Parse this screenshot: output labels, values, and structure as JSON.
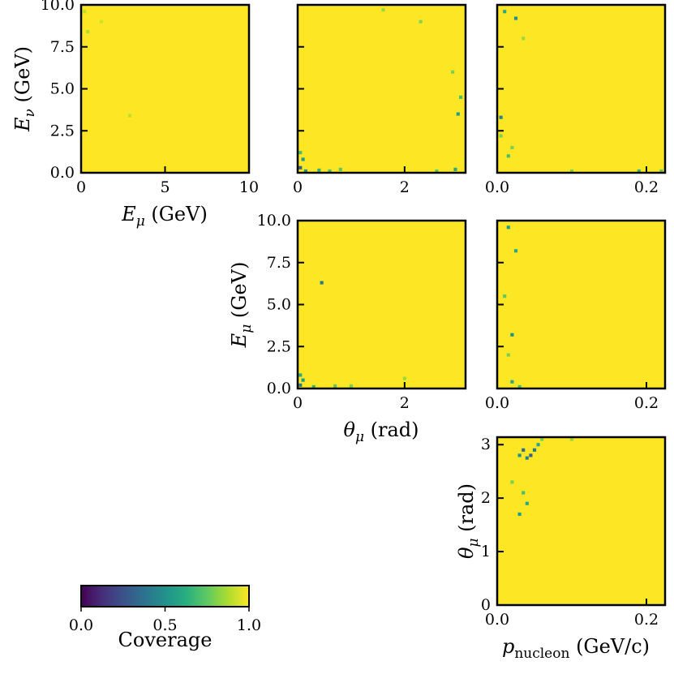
{
  "chart_data": [
    {
      "type": "heatmap",
      "id": "p00",
      "x_var": "E_mu",
      "y_var": "E_nu",
      "xlim": [
        0,
        10
      ],
      "ylim": [
        0,
        10
      ],
      "xticks": [
        {
          "v": 0,
          "label": "0"
        },
        {
          "v": 5,
          "label": "5"
        },
        {
          "v": 10,
          "label": "10"
        }
      ],
      "yticks": [
        {
          "v": 0,
          "label": "0.0"
        },
        {
          "v": 2.5,
          "label": "2.5"
        },
        {
          "v": 5,
          "label": "5.0"
        },
        {
          "v": 7.5,
          "label": "7.5"
        },
        {
          "v": 10,
          "label": "10.0"
        }
      ],
      "show_ytick_labels": true,
      "xlabel": {
        "main": "E",
        "sub": "μ",
        "unit": " (GeV)"
      },
      "ylabel": {
        "main": "E",
        "sub": "ν",
        "unit": " (GeV)"
      },
      "background_coverage": 1.0,
      "cells": [
        [
          0.2,
          9.6,
          0.9
        ],
        [
          0.4,
          8.4,
          0.88
        ],
        [
          2.9,
          3.4,
          0.9
        ],
        [
          1.2,
          9.0,
          0.93
        ]
      ]
    },
    {
      "type": "heatmap",
      "id": "p01",
      "x_var": "theta_mu",
      "y_var": "E_nu",
      "xlim": [
        0,
        3.14
      ],
      "ylim": [
        0,
        10
      ],
      "xticks": [
        {
          "v": 0,
          "label": "0"
        },
        {
          "v": 2,
          "label": "2"
        }
      ],
      "yticks": [
        {
          "v": 0,
          "label": ""
        },
        {
          "v": 2.5,
          "label": ""
        },
        {
          "v": 5,
          "label": ""
        },
        {
          "v": 7.5,
          "label": ""
        },
        {
          "v": 10,
          "label": ""
        }
      ],
      "show_ytick_labels": false,
      "background_coverage": 1.0,
      "cells": [
        [
          0.05,
          0.3,
          0.3
        ],
        [
          0.1,
          0.8,
          0.55
        ],
        [
          0.05,
          1.2,
          0.7
        ],
        [
          0.15,
          0.1,
          0.5
        ],
        [
          0.4,
          0.15,
          0.65
        ],
        [
          0.6,
          0.1,
          0.7
        ],
        [
          0.8,
          0.2,
          0.75
        ],
        [
          3.0,
          3.5,
          0.55
        ],
        [
          3.05,
          4.5,
          0.7
        ],
        [
          2.9,
          6.0,
          0.8
        ],
        [
          2.3,
          9.0,
          0.82
        ],
        [
          1.6,
          9.7,
          0.85
        ],
        [
          2.6,
          0.1,
          0.75
        ],
        [
          2.95,
          0.2,
          0.6
        ]
      ]
    },
    {
      "type": "heatmap",
      "id": "p02",
      "x_var": "p_nucleon",
      "y_var": "E_nu",
      "xlim": [
        0,
        0.225
      ],
      "ylim": [
        0,
        10
      ],
      "xticks": [
        {
          "v": 0,
          "label": "0.0"
        },
        {
          "v": 0.2,
          "label": "0.2"
        }
      ],
      "yticks": [
        {
          "v": 0,
          "label": ""
        },
        {
          "v": 2.5,
          "label": ""
        },
        {
          "v": 5,
          "label": ""
        },
        {
          "v": 7.5,
          "label": ""
        },
        {
          "v": 10,
          "label": ""
        }
      ],
      "show_ytick_labels": false,
      "background_coverage": 1.0,
      "cells": [
        [
          0.005,
          3.3,
          0.45
        ],
        [
          0.01,
          9.6,
          0.6
        ],
        [
          0.025,
          9.2,
          0.5
        ],
        [
          0.015,
          1.0,
          0.7
        ],
        [
          0.02,
          1.5,
          0.8
        ],
        [
          0.005,
          2.2,
          0.8
        ],
        [
          0.1,
          0.1,
          0.8
        ],
        [
          0.19,
          0.1,
          0.65
        ],
        [
          0.22,
          0.1,
          0.75
        ],
        [
          0.035,
          8.0,
          0.85
        ]
      ]
    },
    {
      "type": "heatmap",
      "id": "p11",
      "x_var": "theta_mu",
      "y_var": "E_mu",
      "xlim": [
        0,
        3.14
      ],
      "ylim": [
        0,
        10
      ],
      "xticks": [
        {
          "v": 0,
          "label": "0"
        },
        {
          "v": 2,
          "label": "2"
        }
      ],
      "yticks": [
        {
          "v": 0,
          "label": "0.0"
        },
        {
          "v": 2.5,
          "label": "2.5"
        },
        {
          "v": 5,
          "label": "5.0"
        },
        {
          "v": 7.5,
          "label": "7.5"
        },
        {
          "v": 10,
          "label": "10.0"
        }
      ],
      "show_ytick_labels": true,
      "xlabel": {
        "main": "θ",
        "sub": "μ",
        "unit": " (rad)"
      },
      "ylabel": {
        "main": "E",
        "sub": "μ",
        "unit": " (GeV)"
      },
      "background_coverage": 1.0,
      "cells": [
        [
          0.45,
          6.3,
          0.4
        ],
        [
          0.05,
          0.2,
          0.4
        ],
        [
          0.05,
          0.8,
          0.6
        ],
        [
          0.1,
          0.5,
          0.55
        ],
        [
          0.3,
          0.1,
          0.65
        ],
        [
          0.7,
          0.15,
          0.75
        ],
        [
          1.0,
          0.15,
          0.8
        ],
        [
          2.0,
          0.6,
          0.85
        ]
      ]
    },
    {
      "type": "heatmap",
      "id": "p12",
      "x_var": "p_nucleon",
      "y_var": "E_mu",
      "xlim": [
        0,
        0.225
      ],
      "ylim": [
        0,
        10
      ],
      "xticks": [
        {
          "v": 0,
          "label": "0.0"
        },
        {
          "v": 0.2,
          "label": "0.2"
        }
      ],
      "yticks": [
        {
          "v": 0,
          "label": ""
        },
        {
          "v": 2.5,
          "label": ""
        },
        {
          "v": 5,
          "label": ""
        },
        {
          "v": 7.5,
          "label": ""
        },
        {
          "v": 10,
          "label": ""
        }
      ],
      "show_ytick_labels": false,
      "background_coverage": 1.0,
      "cells": [
        [
          0.02,
          3.2,
          0.5
        ],
        [
          0.015,
          9.6,
          0.55
        ],
        [
          0.025,
          8.2,
          0.6
        ],
        [
          0.02,
          0.4,
          0.6
        ],
        [
          0.03,
          0.1,
          0.7
        ],
        [
          0.01,
          5.5,
          0.75
        ],
        [
          0.015,
          2.0,
          0.8
        ]
      ]
    },
    {
      "type": "heatmap",
      "id": "p22",
      "x_var": "p_nucleon",
      "y_var": "theta_mu",
      "xlim": [
        0,
        0.225
      ],
      "ylim": [
        0,
        3.14
      ],
      "xticks": [
        {
          "v": 0,
          "label": "0.0"
        },
        {
          "v": 0.2,
          "label": "0.2"
        }
      ],
      "yticks": [
        {
          "v": 0,
          "label": "0"
        },
        {
          "v": 1,
          "label": "1"
        },
        {
          "v": 2,
          "label": "2"
        },
        {
          "v": 3,
          "label": "3"
        }
      ],
      "show_ytick_labels": true,
      "xlabel": {
        "main": "p",
        "sub": "nucleon",
        "unit": " (GeV/c)"
      },
      "ylabel": {
        "main": "θ",
        "sub": "μ",
        "unit": " (rad)"
      },
      "background_coverage": 1.0,
      "cells": [
        [
          0.035,
          2.9,
          0.35
        ],
        [
          0.045,
          2.8,
          0.3
        ],
        [
          0.04,
          2.75,
          0.45
        ],
        [
          0.05,
          2.9,
          0.4
        ],
        [
          0.03,
          2.8,
          0.5
        ],
        [
          0.055,
          3.0,
          0.6
        ],
        [
          0.03,
          1.7,
          0.55
        ],
        [
          0.04,
          1.9,
          0.6
        ],
        [
          0.035,
          2.1,
          0.7
        ],
        [
          0.06,
          3.1,
          0.8
        ],
        [
          0.1,
          3.1,
          0.85
        ],
        [
          0.02,
          2.3,
          0.8
        ]
      ]
    }
  ],
  "colorbar": {
    "colormap": "viridis",
    "range": [
      0.0,
      1.0
    ],
    "tick_labels": [
      "0.0",
      "0.5",
      "1.0"
    ],
    "label": "Coverage"
  }
}
